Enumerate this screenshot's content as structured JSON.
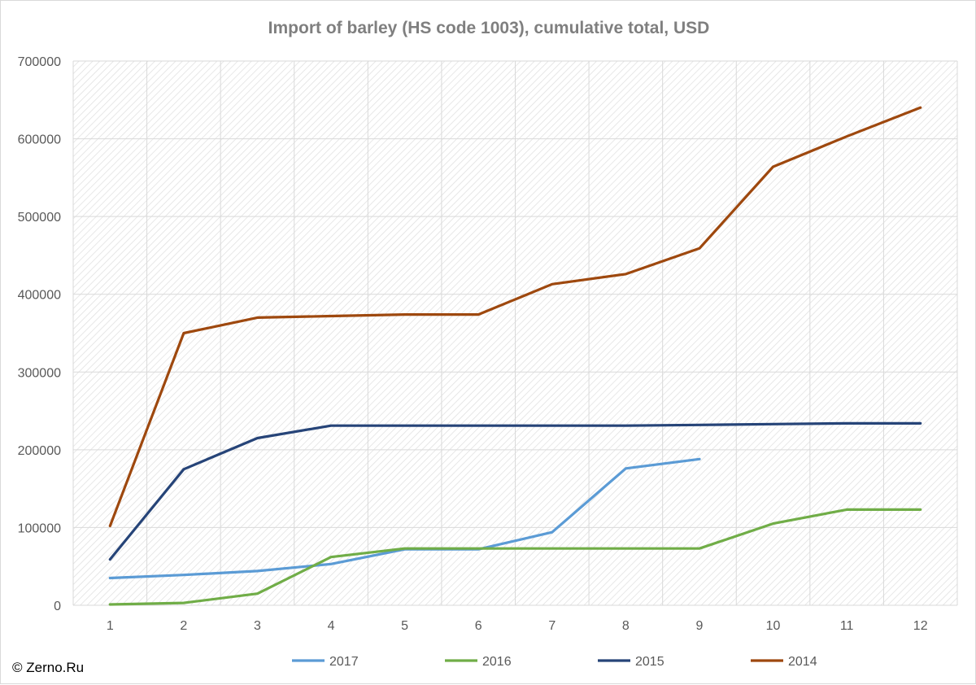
{
  "chart_data": {
    "type": "line",
    "title": "Import of barley (HS code 1003), cumulative total, USD",
    "xlabel": "",
    "ylabel": "",
    "x": [
      1,
      2,
      3,
      4,
      5,
      6,
      7,
      8,
      9,
      10,
      11,
      12
    ],
    "x_tick_labels": [
      "1",
      "2",
      "3",
      "4",
      "5",
      "6",
      "7",
      "8",
      "9",
      "10",
      "11",
      "12"
    ],
    "ylim": [
      0,
      700000
    ],
    "y_tick_labels": [
      "0",
      "100000",
      "200000",
      "300000",
      "400000",
      "500000",
      "600000",
      "700000"
    ],
    "grid": true,
    "legend_position": "bottom",
    "series": [
      {
        "name": "2017",
        "color": "#5b9bd5",
        "values": [
          35000,
          39000,
          44000,
          53000,
          72000,
          72000,
          94000,
          176000,
          188000,
          null,
          null,
          null
        ]
      },
      {
        "name": "2016",
        "color": "#70ad47",
        "values": [
          1000,
          3000,
          15000,
          62000,
          73000,
          73000,
          73000,
          73000,
          73000,
          105000,
          123000,
          123000
        ]
      },
      {
        "name": "2015",
        "color": "#264478",
        "values": [
          59000,
          175000,
          215000,
          231000,
          231000,
          231000,
          231000,
          231000,
          232000,
          233000,
          234000,
          234000
        ]
      },
      {
        "name": "2014",
        "color": "#9e480e",
        "values": [
          102000,
          350000,
          370000,
          372000,
          374000,
          374000,
          413000,
          426000,
          459000,
          564000,
          603000,
          640000
        ]
      }
    ]
  },
  "credit": "© Zerno.Ru"
}
